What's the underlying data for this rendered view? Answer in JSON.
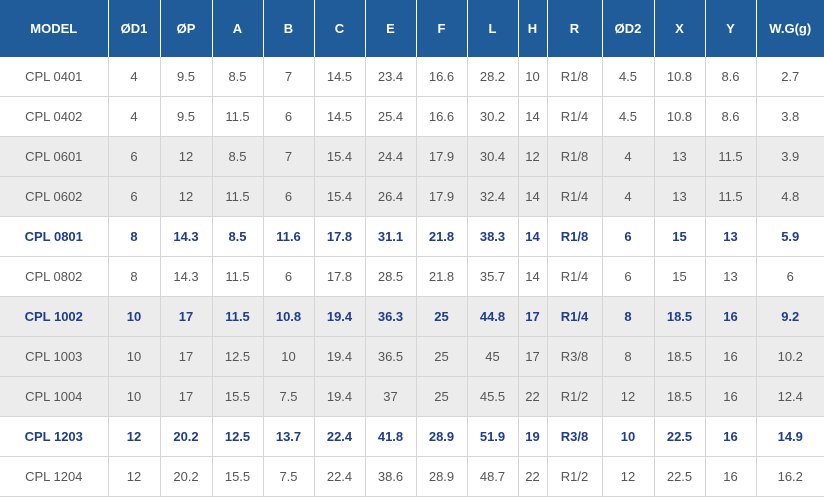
{
  "table": {
    "columns": [
      "MODEL",
      "ØD1",
      "ØP",
      "A",
      "B",
      "C",
      "E",
      "F",
      "L",
      "H",
      "R",
      "ØD2",
      "X",
      "Y",
      "W.G(g)"
    ],
    "rows": [
      {
        "highlight": false,
        "shaded": false,
        "cells": [
          "CPL 0401",
          "4",
          "9.5",
          "8.5",
          "7",
          "14.5",
          "23.4",
          "16.6",
          "28.2",
          "10",
          "R1/8",
          "4.5",
          "10.8",
          "8.6",
          "2.7"
        ]
      },
      {
        "highlight": false,
        "shaded": false,
        "cells": [
          "CPL 0402",
          "4",
          "9.5",
          "11.5",
          "6",
          "14.5",
          "25.4",
          "16.6",
          "30.2",
          "14",
          "R1/4",
          "4.5",
          "10.8",
          "8.6",
          "3.8"
        ]
      },
      {
        "highlight": false,
        "shaded": true,
        "cells": [
          "CPL 0601",
          "6",
          "12",
          "8.5",
          "7",
          "15.4",
          "24.4",
          "17.9",
          "30.4",
          "12",
          "R1/8",
          "4",
          "13",
          "11.5",
          "3.9"
        ]
      },
      {
        "highlight": false,
        "shaded": true,
        "cells": [
          "CPL 0602",
          "6",
          "12",
          "11.5",
          "6",
          "15.4",
          "26.4",
          "17.9",
          "32.4",
          "14",
          "R1/4",
          "4",
          "13",
          "11.5",
          "4.8"
        ]
      },
      {
        "highlight": true,
        "shaded": false,
        "cells": [
          "CPL 0801",
          "8",
          "14.3",
          "8.5",
          "11.6",
          "17.8",
          "31.1",
          "21.8",
          "38.3",
          "14",
          "R1/8",
          "6",
          "15",
          "13",
          "5.9"
        ]
      },
      {
        "highlight": false,
        "shaded": false,
        "cells": [
          "CPL 0802",
          "8",
          "14.3",
          "11.5",
          "6",
          "17.8",
          "28.5",
          "21.8",
          "35.7",
          "14",
          "R1/4",
          "6",
          "15",
          "13",
          "6"
        ]
      },
      {
        "highlight": true,
        "shaded": true,
        "cells": [
          "CPL 1002",
          "10",
          "17",
          "11.5",
          "10.8",
          "19.4",
          "36.3",
          "25",
          "44.8",
          "17",
          "R1/4",
          "8",
          "18.5",
          "16",
          "9.2"
        ]
      },
      {
        "highlight": false,
        "shaded": true,
        "cells": [
          "CPL 1003",
          "10",
          "17",
          "12.5",
          "10",
          "19.4",
          "36.5",
          "25",
          "45",
          "17",
          "R3/8",
          "8",
          "18.5",
          "16",
          "10.2"
        ]
      },
      {
        "highlight": false,
        "shaded": true,
        "cells": [
          "CPL 1004",
          "10",
          "17",
          "15.5",
          "7.5",
          "19.4",
          "37",
          "25",
          "45.5",
          "22",
          "R1/2",
          "12",
          "18.5",
          "16",
          "12.4"
        ]
      },
      {
        "highlight": true,
        "shaded": false,
        "cells": [
          "CPL 1203",
          "12",
          "20.2",
          "12.5",
          "13.7",
          "22.4",
          "41.8",
          "28.9",
          "51.9",
          "19",
          "R3/8",
          "10",
          "22.5",
          "16",
          "14.9"
        ]
      },
      {
        "highlight": false,
        "shaded": false,
        "cells": [
          "CPL 1204",
          "12",
          "20.2",
          "15.5",
          "7.5",
          "22.4",
          "38.6",
          "28.9",
          "48.7",
          "22",
          "R1/2",
          "12",
          "22.5",
          "16",
          "16.2"
        ]
      }
    ]
  }
}
